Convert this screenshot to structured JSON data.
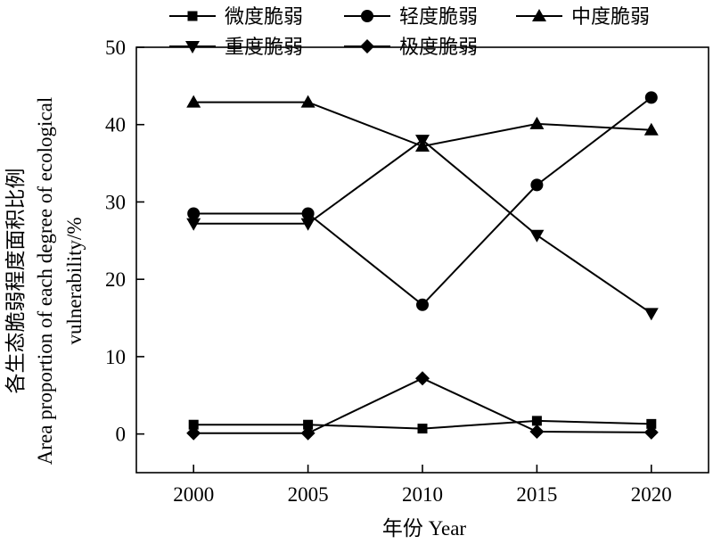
{
  "chart_data": {
    "type": "line",
    "x": [
      2000,
      2005,
      2010,
      2015,
      2020
    ],
    "x_tick_labels": [
      "2000",
      "2005",
      "2010",
      "2015",
      "2020"
    ],
    "xlim": [
      1997.5,
      2022.5
    ],
    "ylim": [
      -5,
      50
    ],
    "y_ticks": [
      0,
      10,
      20,
      30,
      40,
      50
    ],
    "y_tick_labels": [
      "0",
      "10",
      "20",
      "30",
      "40",
      "50"
    ],
    "xlabel": "年份 Year",
    "ylabel_lines": [
      "各生态脆弱程度面积比例",
      "Area proportion of each degree of ecological",
      "vulnerability/%"
    ],
    "grid": false,
    "legend_position": "top",
    "series": [
      {
        "name": "微度脆弱",
        "marker": "square",
        "values": [
          1.2,
          1.2,
          0.7,
          1.7,
          1.3
        ]
      },
      {
        "name": "轻度脆弱",
        "marker": "circle",
        "values": [
          28.5,
          28.5,
          16.7,
          32.2,
          43.5
        ]
      },
      {
        "name": "中度脆弱",
        "marker": "triangle-up",
        "values": [
          42.9,
          42.9,
          37.2,
          40.1,
          39.3
        ]
      },
      {
        "name": "重度脆弱",
        "marker": "triangle-down",
        "values": [
          27.2,
          27.2,
          38.0,
          25.7,
          15.6
        ]
      },
      {
        "name": "极度脆弱",
        "marker": "diamond",
        "values": [
          0.1,
          0.1,
          7.2,
          0.3,
          0.2
        ]
      }
    ]
  }
}
